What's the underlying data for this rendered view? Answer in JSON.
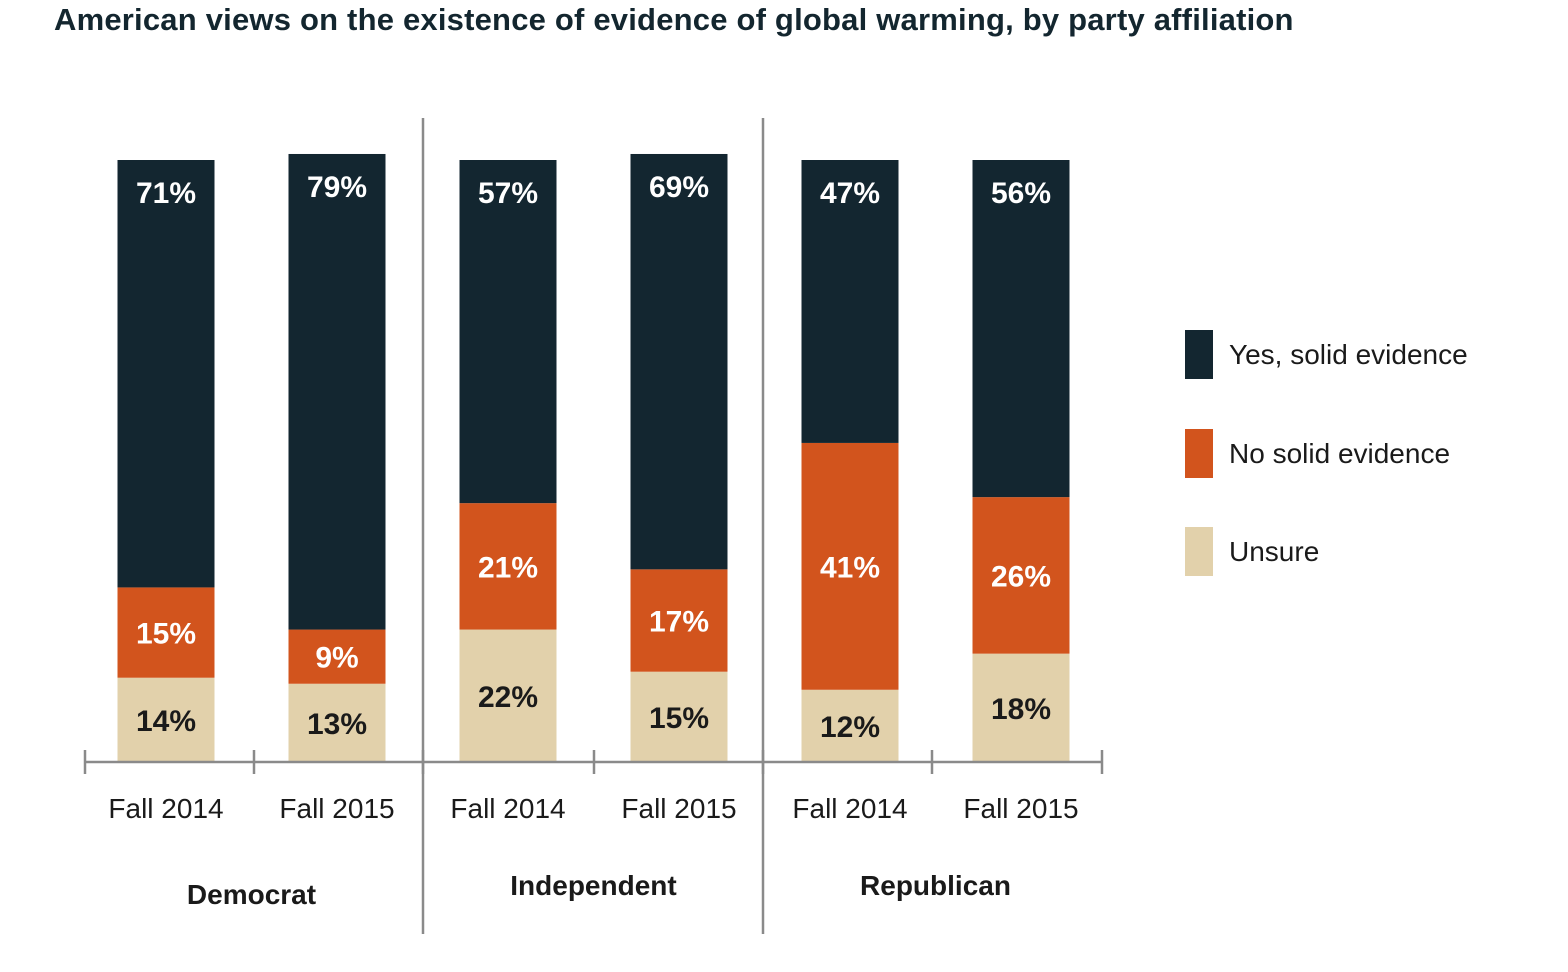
{
  "chart_data": {
    "type": "bar",
    "stacked": true,
    "title": "American views on the existence of evidence of global warming, by party affiliation",
    "groups": [
      "Democrat",
      "Independent",
      "Republican"
    ],
    "categories": [
      "Fall 2014",
      "Fall 2015",
      "Fall 2014",
      "Fall 2015",
      "Fall 2014",
      "Fall 2015"
    ],
    "series": [
      {
        "name": "Unsure",
        "color": "#e2d1ab",
        "label_color": "#1a1a1a",
        "values": [
          14,
          13,
          22,
          15,
          12,
          18
        ],
        "labels": [
          "14%",
          "13%",
          "22%",
          "15%",
          "12%",
          "18%"
        ]
      },
      {
        "name": "No solid evidence",
        "color": "#d2541d",
        "label_color": "#ffffff",
        "values": [
          15,
          9,
          21,
          17,
          41,
          26
        ],
        "labels": [
          "15%",
          "9%",
          "21%",
          "17%",
          "41%",
          "26%"
        ]
      },
      {
        "name": "Yes, solid evidence",
        "color": "#132630",
        "label_color": "#ffffff",
        "values": [
          71,
          79,
          57,
          69,
          47,
          56
        ],
        "labels": [
          "71%",
          "79%",
          "57%",
          "69%",
          "47%",
          "56%"
        ]
      }
    ],
    "legend_order": [
      "Yes, solid evidence",
      "No solid evidence",
      "Unsure"
    ],
    "legend_position": "right",
    "ylim": [
      0,
      100
    ],
    "grid": false
  }
}
